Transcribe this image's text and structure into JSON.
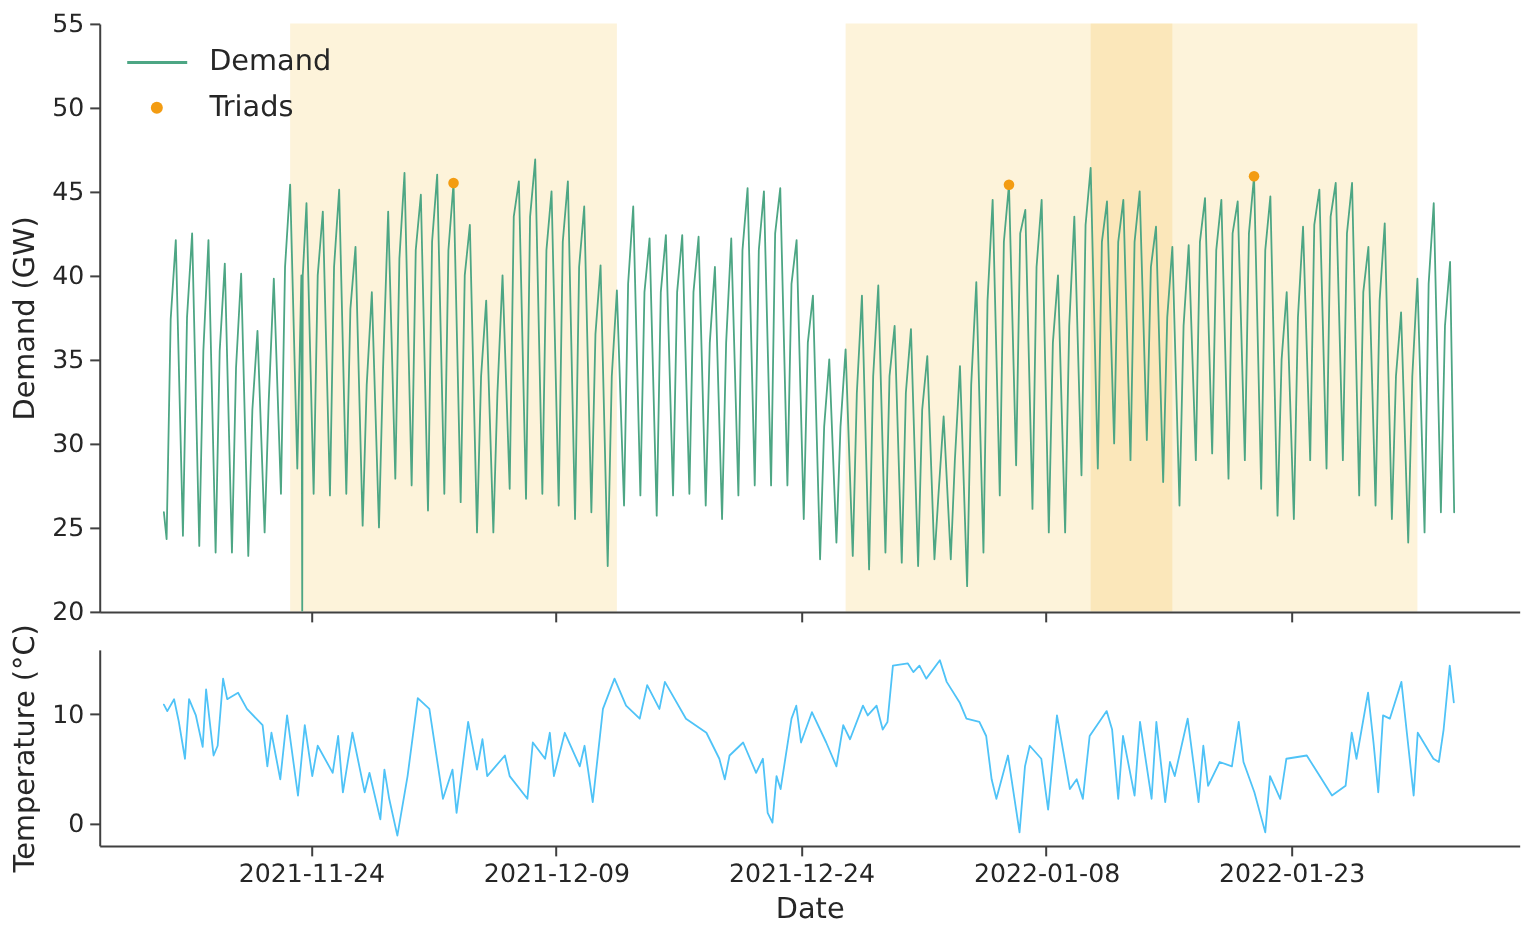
{
  "chart_data": [
    {
      "type": "line",
      "ylabel": "Demand (GW)",
      "xlim": [
        "2021-11-11T01:00",
        "2022-02-05T23:00"
      ],
      "xticks": [
        "2021-11-24",
        "2021-12-09",
        "2021-12-24",
        "2022-01-08",
        "2022-01-23"
      ],
      "ylim": [
        20,
        55
      ],
      "yticks": [
        20,
        25,
        30,
        35,
        40,
        45,
        50,
        55
      ],
      "tick_labels": "y",
      "legend": "top left",
      "bands": [
        {
          "axis": "x",
          "from": "2021-11-22T17:30",
          "to": "2021-12-12T17:30",
          "color": "#fdf3da"
        },
        {
          "axis": "x",
          "from": "2021-12-26T17:30",
          "to": "2022-01-15T17:30",
          "color": "#fdf3da"
        },
        {
          "axis": "x",
          "from": "2022-01-10T17:30",
          "to": "2022-01-30T17:30",
          "color": "#fdf3da"
        }
      ],
      "series": [
        {
          "name": "Demand",
          "type": "line",
          "color": "#4da684",
          "x": [
            "2021-11-15T00:00",
            "2021-11-15T04:00",
            "2021-11-15T10:00",
            "2021-11-15T17:30",
            "2021-11-16T04:00",
            "2021-11-16T10:00",
            "2021-11-16T17:30",
            "2021-11-17T04:00",
            "2021-11-17T10:00",
            "2021-11-17T17:30",
            "2021-11-18T04:00",
            "2021-11-18T10:00",
            "2021-11-18T17:30",
            "2021-11-19T04:00",
            "2021-11-19T10:00",
            "2021-11-19T17:30",
            "2021-11-20T04:00",
            "2021-11-20T10:00",
            "2021-11-20T17:30",
            "2021-11-21T04:00",
            "2021-11-21T10:00",
            "2021-11-21T17:30",
            "2021-11-22T04:00",
            "2021-11-22T10:00",
            "2021-11-22T17:30",
            "2021-11-23T04:00",
            "2021-11-23T10:00",
            "2021-11-23T11:15",
            "2021-11-23T12:00",
            "2021-11-23T17:30",
            "2021-11-24T04:00",
            "2021-11-24T10:00",
            "2021-11-24T17:30",
            "2021-11-25T04:00",
            "2021-11-25T10:00",
            "2021-11-25T17:30",
            "2021-11-26T04:00",
            "2021-11-26T10:00",
            "2021-11-26T17:30",
            "2021-11-27T04:00",
            "2021-11-27T10:00",
            "2021-11-27T17:30",
            "2021-11-28T04:00",
            "2021-11-28T10:00",
            "2021-11-28T17:30",
            "2021-11-29T04:00",
            "2021-11-29T10:00",
            "2021-11-29T17:30",
            "2021-11-30T04:00",
            "2021-11-30T10:00",
            "2021-11-30T17:30",
            "2021-12-01T04:00",
            "2021-12-01T10:00",
            "2021-12-01T17:30",
            "2021-12-02T04:00",
            "2021-12-02T10:00",
            "2021-12-02T17:30",
            "2021-12-03T04:00",
            "2021-12-03T10:00",
            "2021-12-03T17:30",
            "2021-12-04T04:00",
            "2021-12-04T10:00",
            "2021-12-04T17:30",
            "2021-12-05T04:00",
            "2021-12-05T10:00",
            "2021-12-05T17:30",
            "2021-12-06T04:00",
            "2021-12-06T10:00",
            "2021-12-06T17:30",
            "2021-12-07T04:00",
            "2021-12-07T10:00",
            "2021-12-07T17:30",
            "2021-12-08T04:00",
            "2021-12-08T10:00",
            "2021-12-08T17:30",
            "2021-12-09T04:00",
            "2021-12-09T10:00",
            "2021-12-09T17:30",
            "2021-12-10T04:00",
            "2021-12-10T10:00",
            "2021-12-10T17:30",
            "2021-12-11T04:00",
            "2021-12-11T10:00",
            "2021-12-11T17:30",
            "2021-12-12T04:00",
            "2021-12-12T10:00",
            "2021-12-12T17:30",
            "2021-12-13T04:00",
            "2021-12-13T10:00",
            "2021-12-13T17:30",
            "2021-12-14T04:00",
            "2021-12-14T10:00",
            "2021-12-14T17:30",
            "2021-12-15T04:00",
            "2021-12-15T10:00",
            "2021-12-15T17:30",
            "2021-12-16T04:00",
            "2021-12-16T10:00",
            "2021-12-16T17:30",
            "2021-12-17T04:00",
            "2021-12-17T10:00",
            "2021-12-17T17:30",
            "2021-12-18T04:00",
            "2021-12-18T10:00",
            "2021-12-18T17:30",
            "2021-12-19T04:00",
            "2021-12-19T10:00",
            "2021-12-19T17:30",
            "2021-12-20T04:00",
            "2021-12-20T10:00",
            "2021-12-20T17:30",
            "2021-12-21T04:00",
            "2021-12-21T10:00",
            "2021-12-21T17:30",
            "2021-12-22T04:00",
            "2021-12-22T10:00",
            "2021-12-22T17:30",
            "2021-12-23T04:00",
            "2021-12-23T10:00",
            "2021-12-23T17:30",
            "2021-12-24T04:00",
            "2021-12-24T10:00",
            "2021-12-24T17:30",
            "2021-12-25T04:00",
            "2021-12-25T10:00",
            "2021-12-25T17:30",
            "2021-12-26T04:00",
            "2021-12-26T10:00",
            "2021-12-26T17:30",
            "2021-12-27T04:00",
            "2021-12-27T10:00",
            "2021-12-27T17:30",
            "2021-12-28T04:00",
            "2021-12-28T10:00",
            "2021-12-28T17:30",
            "2021-12-29T04:00",
            "2021-12-29T10:00",
            "2021-12-29T17:30",
            "2021-12-30T04:00",
            "2021-12-30T10:00",
            "2021-12-30T17:30",
            "2021-12-31T04:00",
            "2021-12-31T10:00",
            "2021-12-31T17:30",
            "2022-01-01T04:00",
            "2022-01-01T10:00",
            "2022-01-01T17:30",
            "2022-01-02T04:00",
            "2022-01-02T10:00",
            "2022-01-02T17:30",
            "2022-01-03T04:00",
            "2022-01-03T10:00",
            "2022-01-03T17:30",
            "2022-01-04T04:00",
            "2022-01-04T10:00",
            "2022-01-04T17:30",
            "2022-01-05T04:00",
            "2022-01-05T10:00",
            "2022-01-05T17:30",
            "2022-01-06T04:00",
            "2022-01-06T10:00",
            "2022-01-06T17:30",
            "2022-01-07T04:00",
            "2022-01-07T10:00",
            "2022-01-07T17:30",
            "2022-01-08T04:00",
            "2022-01-08T10:00",
            "2022-01-08T17:30",
            "2022-01-09T04:00",
            "2022-01-09T10:00",
            "2022-01-09T17:30",
            "2022-01-10T04:00",
            "2022-01-10T10:00",
            "2022-01-10T17:30",
            "2022-01-11T04:00",
            "2022-01-11T10:00",
            "2022-01-11T17:30",
            "2022-01-12T04:00",
            "2022-01-12T10:00",
            "2022-01-12T17:30",
            "2022-01-13T04:00",
            "2022-01-13T10:00",
            "2022-01-13T17:30",
            "2022-01-14T04:00",
            "2022-01-14T10:00",
            "2022-01-14T17:30",
            "2022-01-15T04:00",
            "2022-01-15T10:00",
            "2022-01-15T17:30",
            "2022-01-16T04:00",
            "2022-01-16T10:00",
            "2022-01-16T17:30",
            "2022-01-17T04:00",
            "2022-01-17T10:00",
            "2022-01-17T17:30",
            "2022-01-18T04:00",
            "2022-01-18T10:00",
            "2022-01-18T17:30",
            "2022-01-19T04:00",
            "2022-01-19T10:00",
            "2022-01-19T17:30",
            "2022-01-20T04:00",
            "2022-01-20T10:00",
            "2022-01-20T17:30",
            "2022-01-21T04:00",
            "2022-01-21T10:00",
            "2022-01-21T17:30",
            "2022-01-22T04:00",
            "2022-01-22T10:00",
            "2022-01-22T17:30",
            "2022-01-23T04:00",
            "2022-01-23T10:00",
            "2022-01-23T17:30",
            "2022-01-24T04:00",
            "2022-01-24T10:00",
            "2022-01-24T17:30",
            "2022-01-25T04:00",
            "2022-01-25T10:00",
            "2022-01-25T17:30",
            "2022-01-26T04:00",
            "2022-01-26T10:00",
            "2022-01-26T17:30",
            "2022-01-27T04:00",
            "2022-01-27T10:00",
            "2022-01-27T17:30",
            "2022-01-28T04:00",
            "2022-01-28T10:00",
            "2022-01-28T17:30",
            "2022-01-29T04:00",
            "2022-01-29T10:00",
            "2022-01-29T17:30",
            "2022-01-30T04:00",
            "2022-01-30T10:00",
            "2022-01-30T17:30",
            "2022-01-31T04:00",
            "2022-01-31T10:00",
            "2022-01-31T17:30",
            "2022-02-01T04:00",
            "2022-02-01T10:00",
            "2022-02-01T17:30",
            "2022-02-01T23:30"
          ],
          "values": [
            25.9,
            24.3,
            37.4,
            42.1,
            24.5,
            37.5,
            42.5,
            23.9,
            35.5,
            42.1,
            23.5,
            35.5,
            40.7,
            23.5,
            34.5,
            40.1,
            23.3,
            32.0,
            36.7,
            24.7,
            32.5,
            39.8,
            27.0,
            40.5,
            45.4,
            28.5,
            40.0,
            20,
            40.0,
            44.3,
            27.0,
            40.0,
            43.8,
            26.9,
            40.5,
            45.1,
            27.0,
            38.0,
            41.7,
            25.1,
            33.5,
            39.0,
            25.0,
            34.5,
            43.8,
            27.9,
            41.0,
            46.1,
            27.5,
            41.5,
            44.8,
            26.0,
            42.0,
            46.0,
            27.0,
            41.5,
            45.5,
            26.5,
            40.0,
            43.0,
            24.7,
            34.0,
            38.5,
            24.7,
            33.0,
            40.0,
            27.3,
            43.5,
            45.6,
            26.7,
            43.5,
            46.9,
            27.0,
            41.5,
            45.0,
            26.3,
            42.0,
            45.6,
            25.5,
            40.5,
            44.1,
            25.9,
            36.5,
            40.6,
            22.7,
            34.0,
            39.1,
            26.3,
            39.5,
            44.1,
            26.9,
            39.0,
            42.2,
            25.7,
            39.0,
            42.4,
            26.9,
            39.0,
            42.4,
            27.0,
            39.0,
            42.3,
            26.3,
            36.0,
            40.5,
            25.5,
            36.0,
            42.2,
            26.9,
            41.5,
            45.2,
            27.5,
            41.5,
            45.0,
            27.5,
            42.5,
            45.2,
            27.5,
            39.5,
            42.1,
            25.5,
            36.0,
            38.8,
            23.1,
            31.0,
            35.0,
            24.1,
            31.0,
            35.6,
            23.3,
            33.0,
            38.8,
            22.5,
            34.0,
            39.4,
            23.5,
            34.0,
            37.0,
            22.9,
            33.0,
            36.8,
            22.7,
            32.0,
            35.2,
            23.1,
            27.0,
            31.6,
            23.1,
            29.0,
            34.6,
            21.5,
            33.5,
            39.6,
            23.5,
            38.5,
            44.5,
            26.9,
            42.0,
            45.4,
            28.7,
            42.5,
            43.9,
            26.1,
            40.5,
            44.5,
            24.7,
            36.0,
            40.0,
            24.7,
            37.0,
            43.5,
            28.1,
            43.0,
            46.4,
            28.5,
            42.0,
            44.4,
            30.0,
            42.0,
            44.5,
            29.0,
            42.0,
            45.0,
            30.2,
            40.5,
            42.9,
            27.7,
            37.5,
            41.7,
            26.3,
            37.0,
            41.8,
            29.0,
            42.0,
            44.6,
            29.4,
            41.5,
            44.5,
            27.9,
            42.5,
            44.4,
            29.0,
            42.5,
            45.9,
            27.3,
            41.5,
            44.7,
            25.7,
            35.0,
            39.0,
            25.5,
            37.5,
            42.9,
            29.0,
            43.0,
            45.1,
            28.5,
            43.5,
            45.5,
            29.0,
            42.5,
            45.5,
            26.9,
            39.0,
            41.7,
            26.3,
            38.5,
            43.1,
            25.5,
            34.0,
            37.8,
            24.1,
            34.0,
            39.8,
            24.7,
            39.5,
            44.3,
            25.9,
            37.0,
            40.8,
            25.9
          ]
        },
        {
          "name": "Triads",
          "type": "scatter",
          "marker": "circle",
          "color": "#f39c12",
          "x": [
            "2021-12-02T17:30",
            "2022-01-05T17:30",
            "2022-01-20T17:30"
          ],
          "values": [
            45.5,
            45.4,
            45.9
          ]
        }
      ]
    },
    {
      "type": "line",
      "xlabel": "Date",
      "ylabel": "Temperature (°C)",
      "xlim": [
        "2021-11-11T01:00",
        "2022-02-05T23:00"
      ],
      "xticks": [
        "2021-11-24",
        "2021-12-09",
        "2021-12-24",
        "2022-01-08",
        "2022-01-23"
      ],
      "ylim": [
        -2.1,
        16
      ],
      "yticks": [
        0,
        10
      ],
      "series": [
        {
          "color": "#4fc3f7",
          "x": [
            "2021-11-15T00:00",
            "2021-11-15T05:00",
            "2021-11-15T15:00",
            "2021-11-15T22:00",
            "2021-11-16T07:00",
            "2021-11-16T13:00",
            "2021-11-16T23:00",
            "2021-11-17T09:00",
            "2021-11-17T14:00",
            "2021-11-18T01:00",
            "2021-11-18T07:00",
            "2021-11-18T15:00",
            "2021-11-18T21:00",
            "2021-11-19T13:00",
            "2021-11-20T02:00",
            "2021-11-21T01:00",
            "2021-11-21T08:00",
            "2021-11-21T14:00",
            "2021-11-22T03:00",
            "2021-11-22T13:00",
            "2021-11-23T05:00",
            "2021-11-23T15:00",
            "2021-11-24T02:00",
            "2021-11-24T10:00",
            "2021-11-25T08:00",
            "2021-11-25T16:00",
            "2021-11-25T23:00",
            "2021-11-26T13:00",
            "2021-11-27T07:00",
            "2021-11-27T14:00",
            "2021-11-28T06:00",
            "2021-11-28T12:00",
            "2021-11-28T19:00",
            "2021-11-29T07:00",
            "2021-11-29T22:00",
            "2021-11-30T13:00",
            "2021-12-01T06:00",
            "2021-12-02T02:00",
            "2021-12-02T16:00",
            "2021-12-02T22:00",
            "2021-12-03T15:00",
            "2021-12-04T04:00",
            "2021-12-04T12:00",
            "2021-12-04T19:00",
            "2021-12-05T21:00",
            "2021-12-06T04:00",
            "2021-12-07T06:00",
            "2021-12-07T14:00",
            "2021-12-08T08:00",
            "2021-12-08T15:00",
            "2021-12-08T21:00",
            "2021-12-09T13:00",
            "2021-12-10T11:00",
            "2021-12-10T18:00",
            "2021-12-11T06:00",
            "2021-12-11T21:00",
            "2021-12-12T14:00",
            "2021-12-13T07:00",
            "2021-12-14T03:00",
            "2021-12-14T14:00",
            "2021-12-15T08:00",
            "2021-12-15T16:00",
            "2021-12-16T23:00",
            "2021-12-18T05:00",
            "2021-12-19T00:00",
            "2021-12-19T08:00",
            "2021-12-19T15:00",
            "2021-12-20T11:00",
            "2021-12-21T06:00",
            "2021-12-21T16:00",
            "2021-12-21T23:00",
            "2021-12-22T06:00",
            "2021-12-22T12:00",
            "2021-12-22T18:00",
            "2021-12-23T10:00",
            "2021-12-23T17:00",
            "2021-12-24T00:00",
            "2021-12-24T16:00",
            "2021-12-25T13:00",
            "2021-12-26T04:00",
            "2021-12-26T14:00",
            "2021-12-27T00:00",
            "2021-12-27T19:00",
            "2021-12-28T02:00",
            "2021-12-28T15:00",
            "2021-12-29T00:00",
            "2021-12-29T07:00",
            "2021-12-29T15:00",
            "2021-12-30T13:00",
            "2021-12-30T21:00",
            "2021-12-31T06:00",
            "2021-12-31T16:00",
            "2022-01-01T12:00",
            "2022-01-01T22:00",
            "2022-01-02T17:00",
            "2022-01-03T03:00",
            "2022-01-03T22:00",
            "2022-01-04T08:00",
            "2022-01-04T16:00",
            "2022-01-04T23:00",
            "2022-01-05T16:00",
            "2022-01-06T09:00",
            "2022-01-06T17:00",
            "2022-01-07T00:00",
            "2022-01-07T17:00",
            "2022-01-08T03:00",
            "2022-01-08T16:00",
            "2022-01-09T11:00",
            "2022-01-09T21:00",
            "2022-01-10T06:00",
            "2022-01-10T16:00",
            "2022-01-11T17:00",
            "2022-01-12T01:00",
            "2022-01-12T10:00",
            "2022-01-12T17:00",
            "2022-01-13T10:00",
            "2022-01-13T18:00",
            "2022-01-14T11:00",
            "2022-01-14T18:00",
            "2022-01-15T07:00",
            "2022-01-15T14:00",
            "2022-01-15T21:00",
            "2022-01-16T16:00",
            "2022-01-17T08:00",
            "2022-01-17T15:00",
            "2022-01-17T22:00",
            "2022-01-18T15:00",
            "2022-01-19T09:00",
            "2022-01-19T19:00",
            "2022-01-20T02:00",
            "2022-01-20T18:00",
            "2022-01-21T10:00",
            "2022-01-21T17:00",
            "2022-01-22T08:00",
            "2022-01-22T17:00",
            "2022-01-23T23:00",
            "2022-01-24T18:00",
            "2022-01-25T12:00",
            "2022-01-26T08:00",
            "2022-01-26T17:00",
            "2022-01-27T00:00",
            "2022-01-27T17:00",
            "2022-01-28T01:00",
            "2022-01-28T08:00",
            "2022-01-28T15:00",
            "2022-01-29T01:00",
            "2022-01-29T18:00",
            "2022-01-30T02:00",
            "2022-01-30T12:00",
            "2022-01-30T18:00",
            "2022-01-31T17:00",
            "2022-02-01T01:00",
            "2022-02-01T08:00",
            "2022-02-01T17:00",
            "2022-02-01T23:00"
          ],
          "values": [
            10.9,
            10.3,
            11.4,
            9.3,
            5.9,
            11.4,
            9.9,
            7.0,
            12.3,
            6.2,
            7.1,
            13.3,
            11.4,
            12.0,
            10.5,
            9.0,
            5.2,
            8.3,
            4.0,
            9.9,
            2.5,
            9.0,
            4.3,
            7.1,
            4.6,
            8.0,
            2.8,
            8.3,
            2.8,
            4.6,
            0.3,
            4.9,
            2.2,
            -1.2,
            4.3,
            11.5,
            10.5,
            2.2,
            4.9,
            0.9,
            9.3,
            4.9,
            7.7,
            4.3,
            6.2,
            4.3,
            2.2,
            7.4,
            5.9,
            8.3,
            4.3,
            8.3,
            5.2,
            7.1,
            1.9,
            10.5,
            13.3,
            10.8,
            9.6,
            12.7,
            10.5,
            13.0,
            9.6,
            8.3,
            5.9,
            4.0,
            6.2,
            7.4,
            4.6,
            5.9,
            0.9,
            0.0,
            4.3,
            3.1,
            9.6,
            10.8,
            7.4,
            10.2,
            7.4,
            5.2,
            9.0,
            7.7,
            10.8,
            9.9,
            10.8,
            8.6,
            9.3,
            14.5,
            14.7,
            13.9,
            14.5,
            13.3,
            15.0,
            13.0,
            11.1,
            9.6,
            9.3,
            8.0,
            4.0,
            2.2,
            6.2,
            -0.9,
            5.2,
            7.1,
            5.9,
            1.2,
            9.9,
            3.1,
            4.0,
            2.2,
            8.0,
            10.3,
            8.6,
            2.2,
            8.0,
            2.5,
            9.3,
            2.2,
            9.3,
            1.9,
            5.6,
            4.3,
            9.6,
            1.9,
            7.1,
            3.4,
            5.6,
            5.2,
            9.3,
            5.6,
            2.8,
            -0.9,
            4.3,
            2.2,
            5.9,
            6.2,
            4.3,
            2.5,
            3.4,
            8.3,
            5.9,
            12.0,
            7.4,
            2.8,
            9.9,
            9.6,
            13.0,
            8.3,
            2.5,
            8.3,
            5.9,
            5.6,
            8.6,
            14.5,
            11.1
          ]
        }
      ]
    }
  ]
}
